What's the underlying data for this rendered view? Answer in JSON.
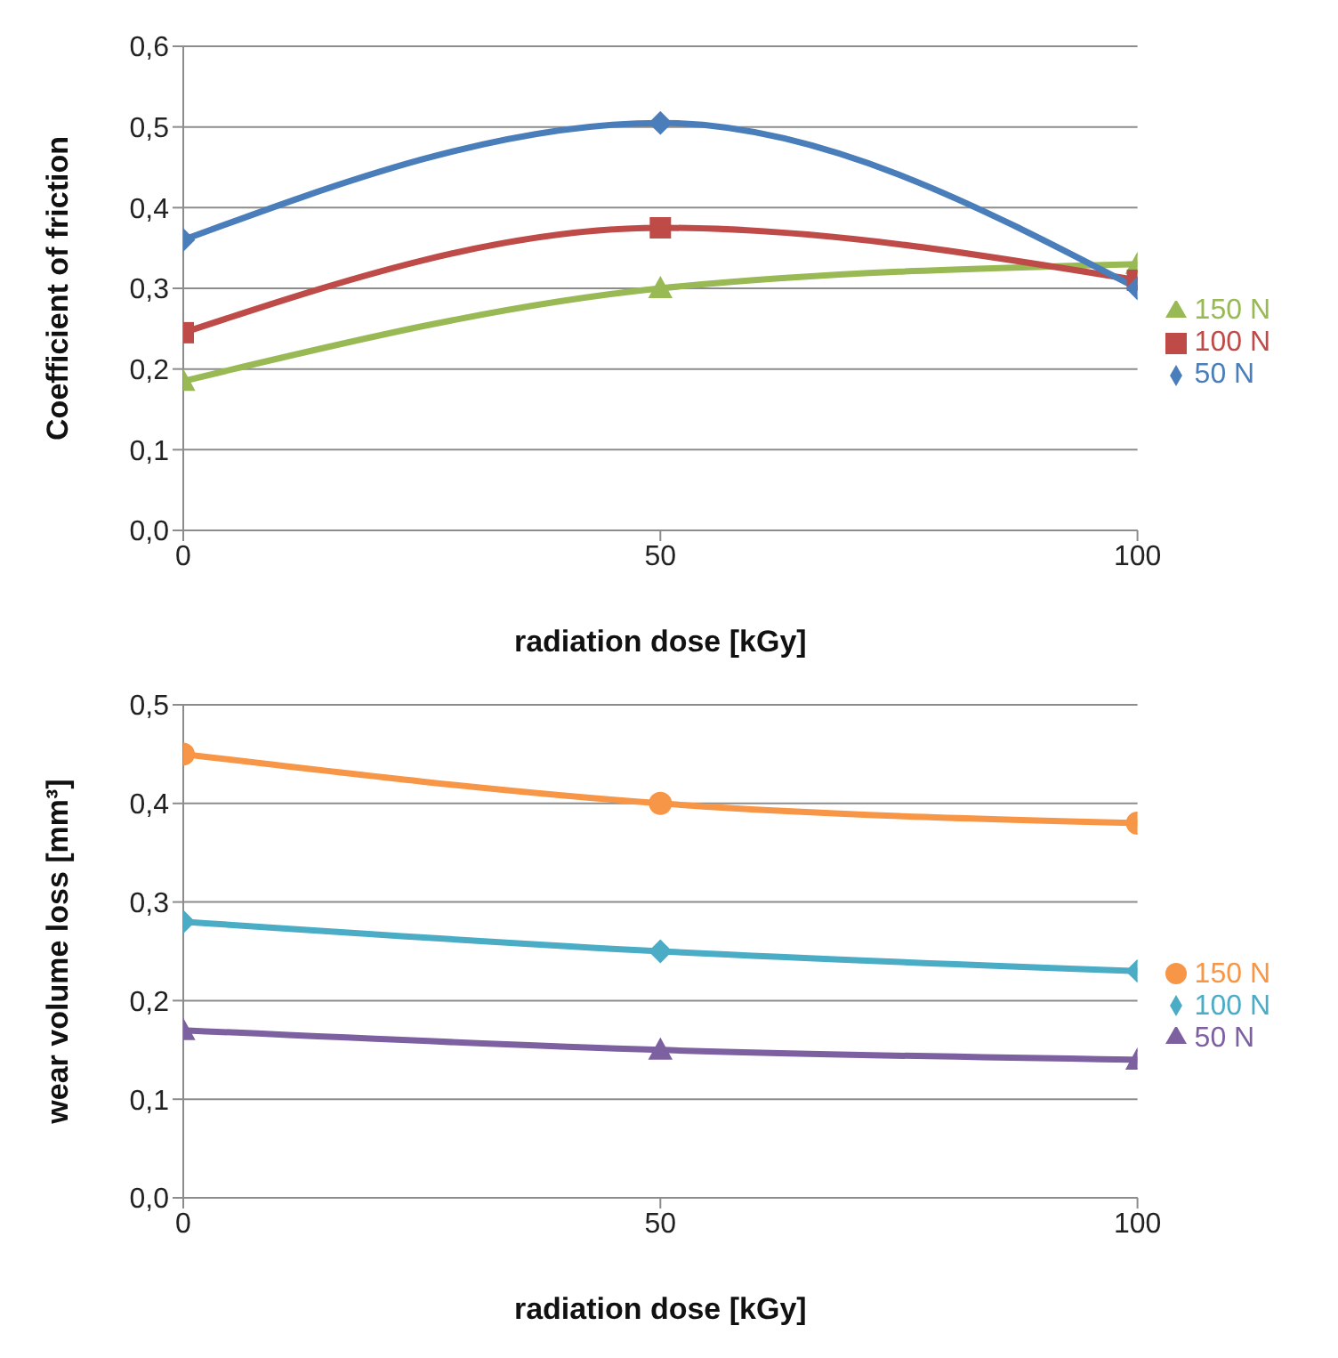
{
  "chart_data": [
    {
      "type": "line",
      "xlabel": "radiation dose [kGy]",
      "ylabel": "Coefficient of friction",
      "x": [
        0,
        50,
        100
      ],
      "xlim": [
        0,
        100
      ],
      "xticks": [
        0,
        50,
        100
      ],
      "ylim": [
        0,
        0.6
      ],
      "yticks": [
        {
          "value": 0,
          "label": "0,0"
        },
        {
          "value": 0.1,
          "label": "0,1"
        },
        {
          "value": 0.2,
          "label": "0,2"
        },
        {
          "value": 0.3,
          "label": "0,3"
        },
        {
          "value": 0.4,
          "label": "0,4"
        },
        {
          "value": 0.5,
          "label": "0,5"
        },
        {
          "value": 0.6,
          "label": "0,6"
        }
      ],
      "grid": "y",
      "legend": "right",
      "series": [
        {
          "name": "50 N",
          "color": "#4a7ebb",
          "marker": "diamond",
          "values": [
            0.36,
            0.505,
            0.3
          ]
        },
        {
          "name": "100 N",
          "color": "#be4b48",
          "marker": "square",
          "values": [
            0.245,
            0.375,
            0.31
          ]
        },
        {
          "name": "150 N",
          "color": "#98b954",
          "marker": "triangle",
          "values": [
            0.185,
            0.3,
            0.33
          ]
        }
      ]
    },
    {
      "type": "line",
      "xlabel": "radiation dose [kGy]",
      "ylabel": "wear volume loss [mm³]",
      "x": [
        0,
        50,
        100
      ],
      "xlim": [
        0,
        100
      ],
      "xticks": [
        0,
        50,
        100
      ],
      "ylim": [
        0,
        0.5
      ],
      "yticks": [
        {
          "value": 0,
          "label": "0,0"
        },
        {
          "value": 0.1,
          "label": "0,1"
        },
        {
          "value": 0.2,
          "label": "0,2"
        },
        {
          "value": 0.3,
          "label": "0,3"
        },
        {
          "value": 0.4,
          "label": "0,4"
        },
        {
          "value": 0.5,
          "label": "0,5"
        }
      ],
      "grid": "y",
      "legend": "right",
      "series": [
        {
          "name": "50 N",
          "color": "#7d60a0",
          "marker": "triangle",
          "values": [
            0.17,
            0.15,
            0.14
          ]
        },
        {
          "name": "100 N",
          "color": "#4bacc6",
          "marker": "diamond",
          "values": [
            0.28,
            0.25,
            0.23
          ]
        },
        {
          "name": "150 N",
          "color": "#f79646",
          "marker": "circle",
          "values": [
            0.45,
            0.4,
            0.38
          ]
        }
      ]
    }
  ]
}
